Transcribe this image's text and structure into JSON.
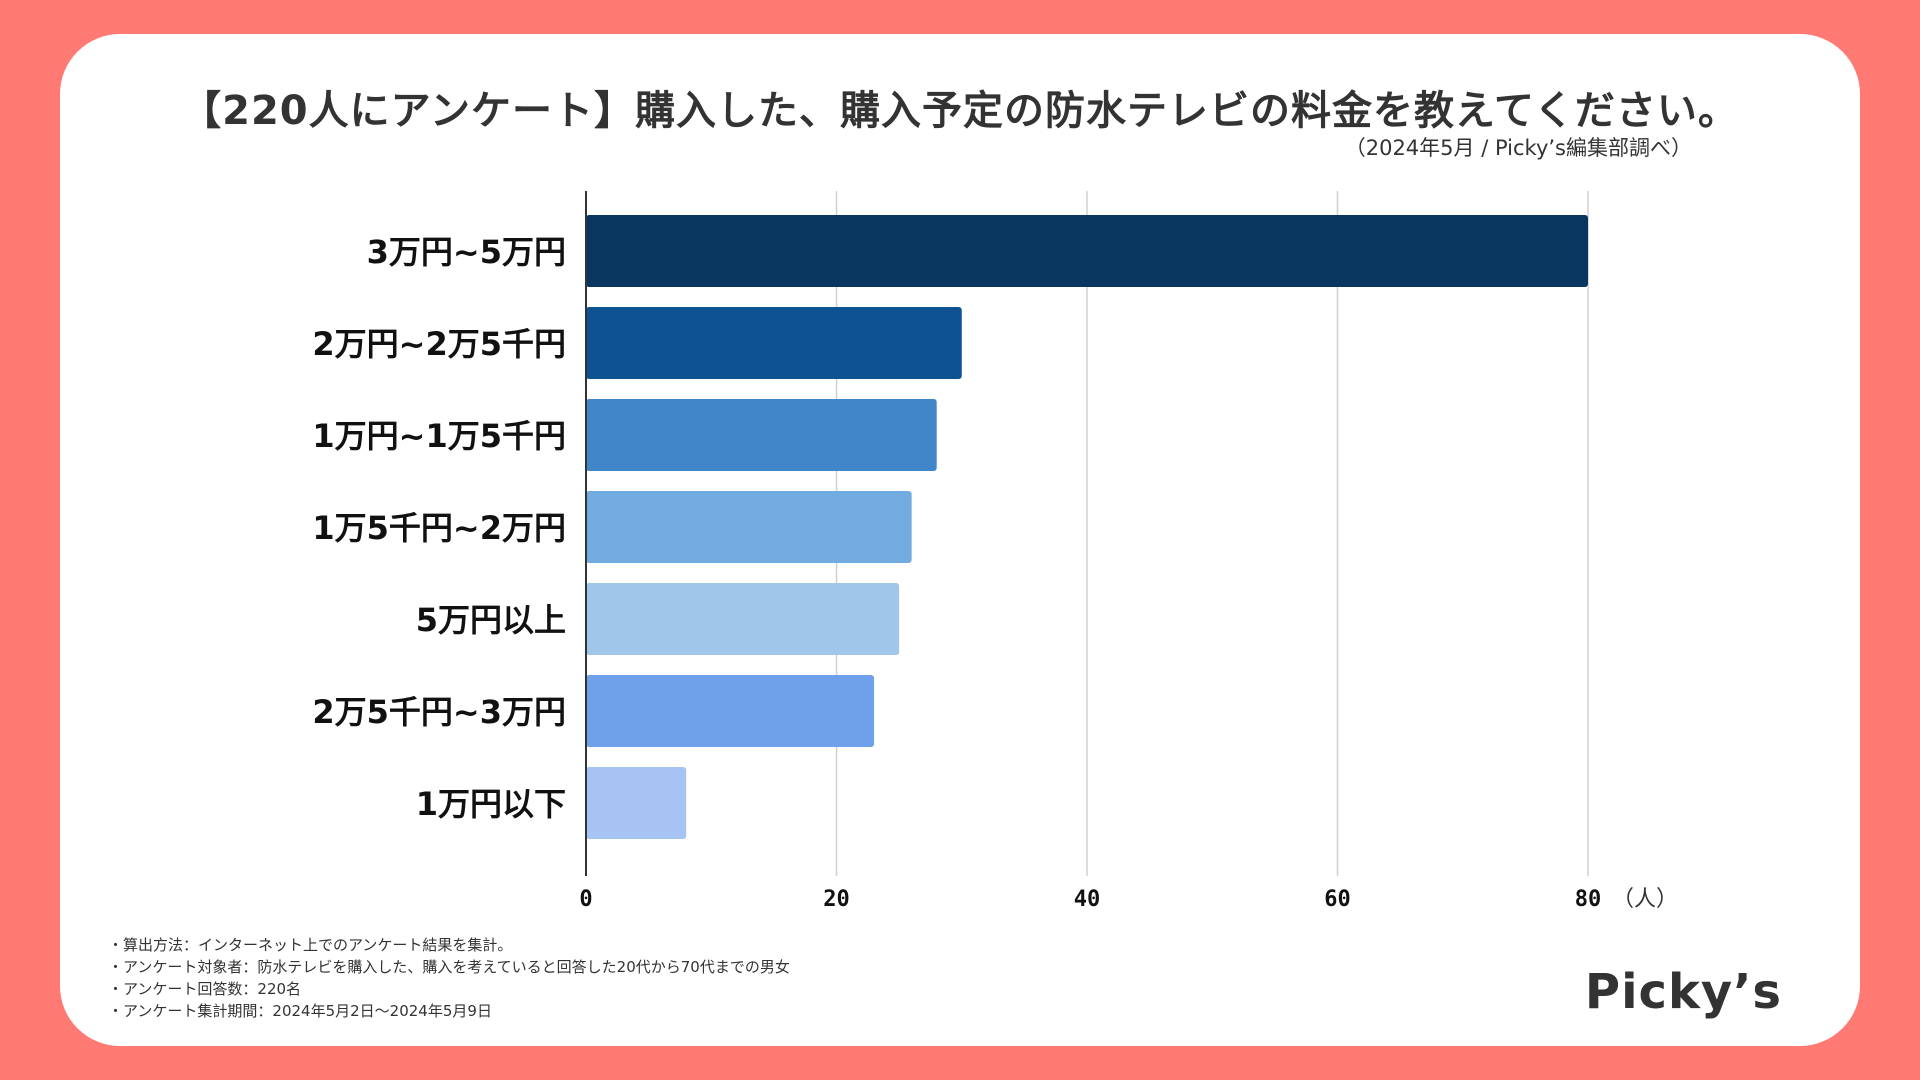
{
  "header": {
    "title": "【220人にアンケート】購入した、購入予定の防水テレビの料金を教えてください。",
    "source": "（2024年5月 / Picky’s編集部調べ）"
  },
  "chart_data": {
    "type": "bar",
    "orientation": "horizontal",
    "categories": [
      "3万円~5万円",
      "2万円~2万5千円",
      "1万円~1万5千円",
      "1万5千円~2万円",
      "5万円以上",
      "2万5千円~3万円",
      "1万円以下"
    ],
    "values": [
      80,
      30,
      28,
      26,
      25,
      23,
      8
    ],
    "colors": [
      "#08365f",
      "#0f5293",
      "#4186c9",
      "#72abe0",
      "#a0c6e9",
      "#6fa0ea",
      "#a6c3f4"
    ],
    "xlim": [
      0,
      80
    ],
    "xticks": [
      0,
      20,
      40,
      60,
      80
    ],
    "xunit": "（人）",
    "grid": true,
    "title": "【220人にアンケート】購入した、購入予定の防水テレビの料金を教えてください。"
  },
  "footnotes": [
    "算出方法：インターネット上でのアンケート結果を集計。",
    "アンケート対象者：防水テレビを購入した、購入を考えていると回答した20代から70代までの男女",
    "アンケート回答数：220名",
    "アンケート集計期間：2024年5月2日〜2024年5月9日"
  ],
  "brand": {
    "logo": "Picky’s"
  },
  "colors": {
    "background": "#ff7a73",
    "card": "#ffffff",
    "text": "#333333",
    "grid": "#d0d0d0"
  }
}
